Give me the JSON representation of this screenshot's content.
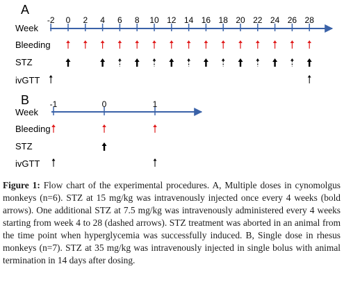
{
  "panelA": {
    "label": "A",
    "rows": [
      "Week",
      "Bleeding",
      "STZ",
      "ivGTT"
    ],
    "weeks": [
      "-2",
      "0",
      "2",
      "4",
      "6",
      "8",
      "10",
      "12",
      "14",
      "16",
      "18",
      "20",
      "22",
      "24",
      "26",
      "28"
    ],
    "bleeding_weeks": [
      0,
      2,
      4,
      6,
      8,
      10,
      12,
      14,
      16,
      18,
      20,
      22,
      24,
      26,
      28
    ],
    "stz_bold_weeks": [
      0,
      4,
      8,
      12,
      16,
      20,
      24,
      28
    ],
    "stz_dashed_weeks": [
      6,
      10,
      14,
      18,
      22,
      26
    ],
    "ivgtt_weeks": [
      -2,
      28
    ],
    "colors": {
      "bleeding": "#e01b1b",
      "stz": "#000000",
      "axis": "#3a62a8"
    }
  },
  "panelB": {
    "label": "B",
    "rows": [
      "Week",
      "Bleeding",
      "STZ",
      "ivGTT"
    ],
    "weeks": [
      "-1",
      "0",
      "1"
    ],
    "bleeding_weeks": [
      -1,
      0,
      1
    ],
    "stz_bold_weeks": [
      0
    ],
    "ivgtt_weeks": [
      -1,
      1
    ]
  },
  "caption": {
    "lead": "Figure 1:",
    "text": " Flow chart of the experimental procedures. A, Multiple doses in cynomolgus monkeys (n=6). STZ at 15 mg/kg was intravenously injected once every 4 weeks (bold arrows). One additional STZ at 7.5 mg/kg was intravenously administered every 4 weeks starting from week 4 to 28 (dashed arrows). STZ treatment was aborted in an animal from the time point when hyperglycemia was successfully induced. B, Single dose in rhesus monkeys (n=7). STZ at 35 mg/kg was intravenously injected in single bolus with animal termination in 14 days after dosing."
  }
}
